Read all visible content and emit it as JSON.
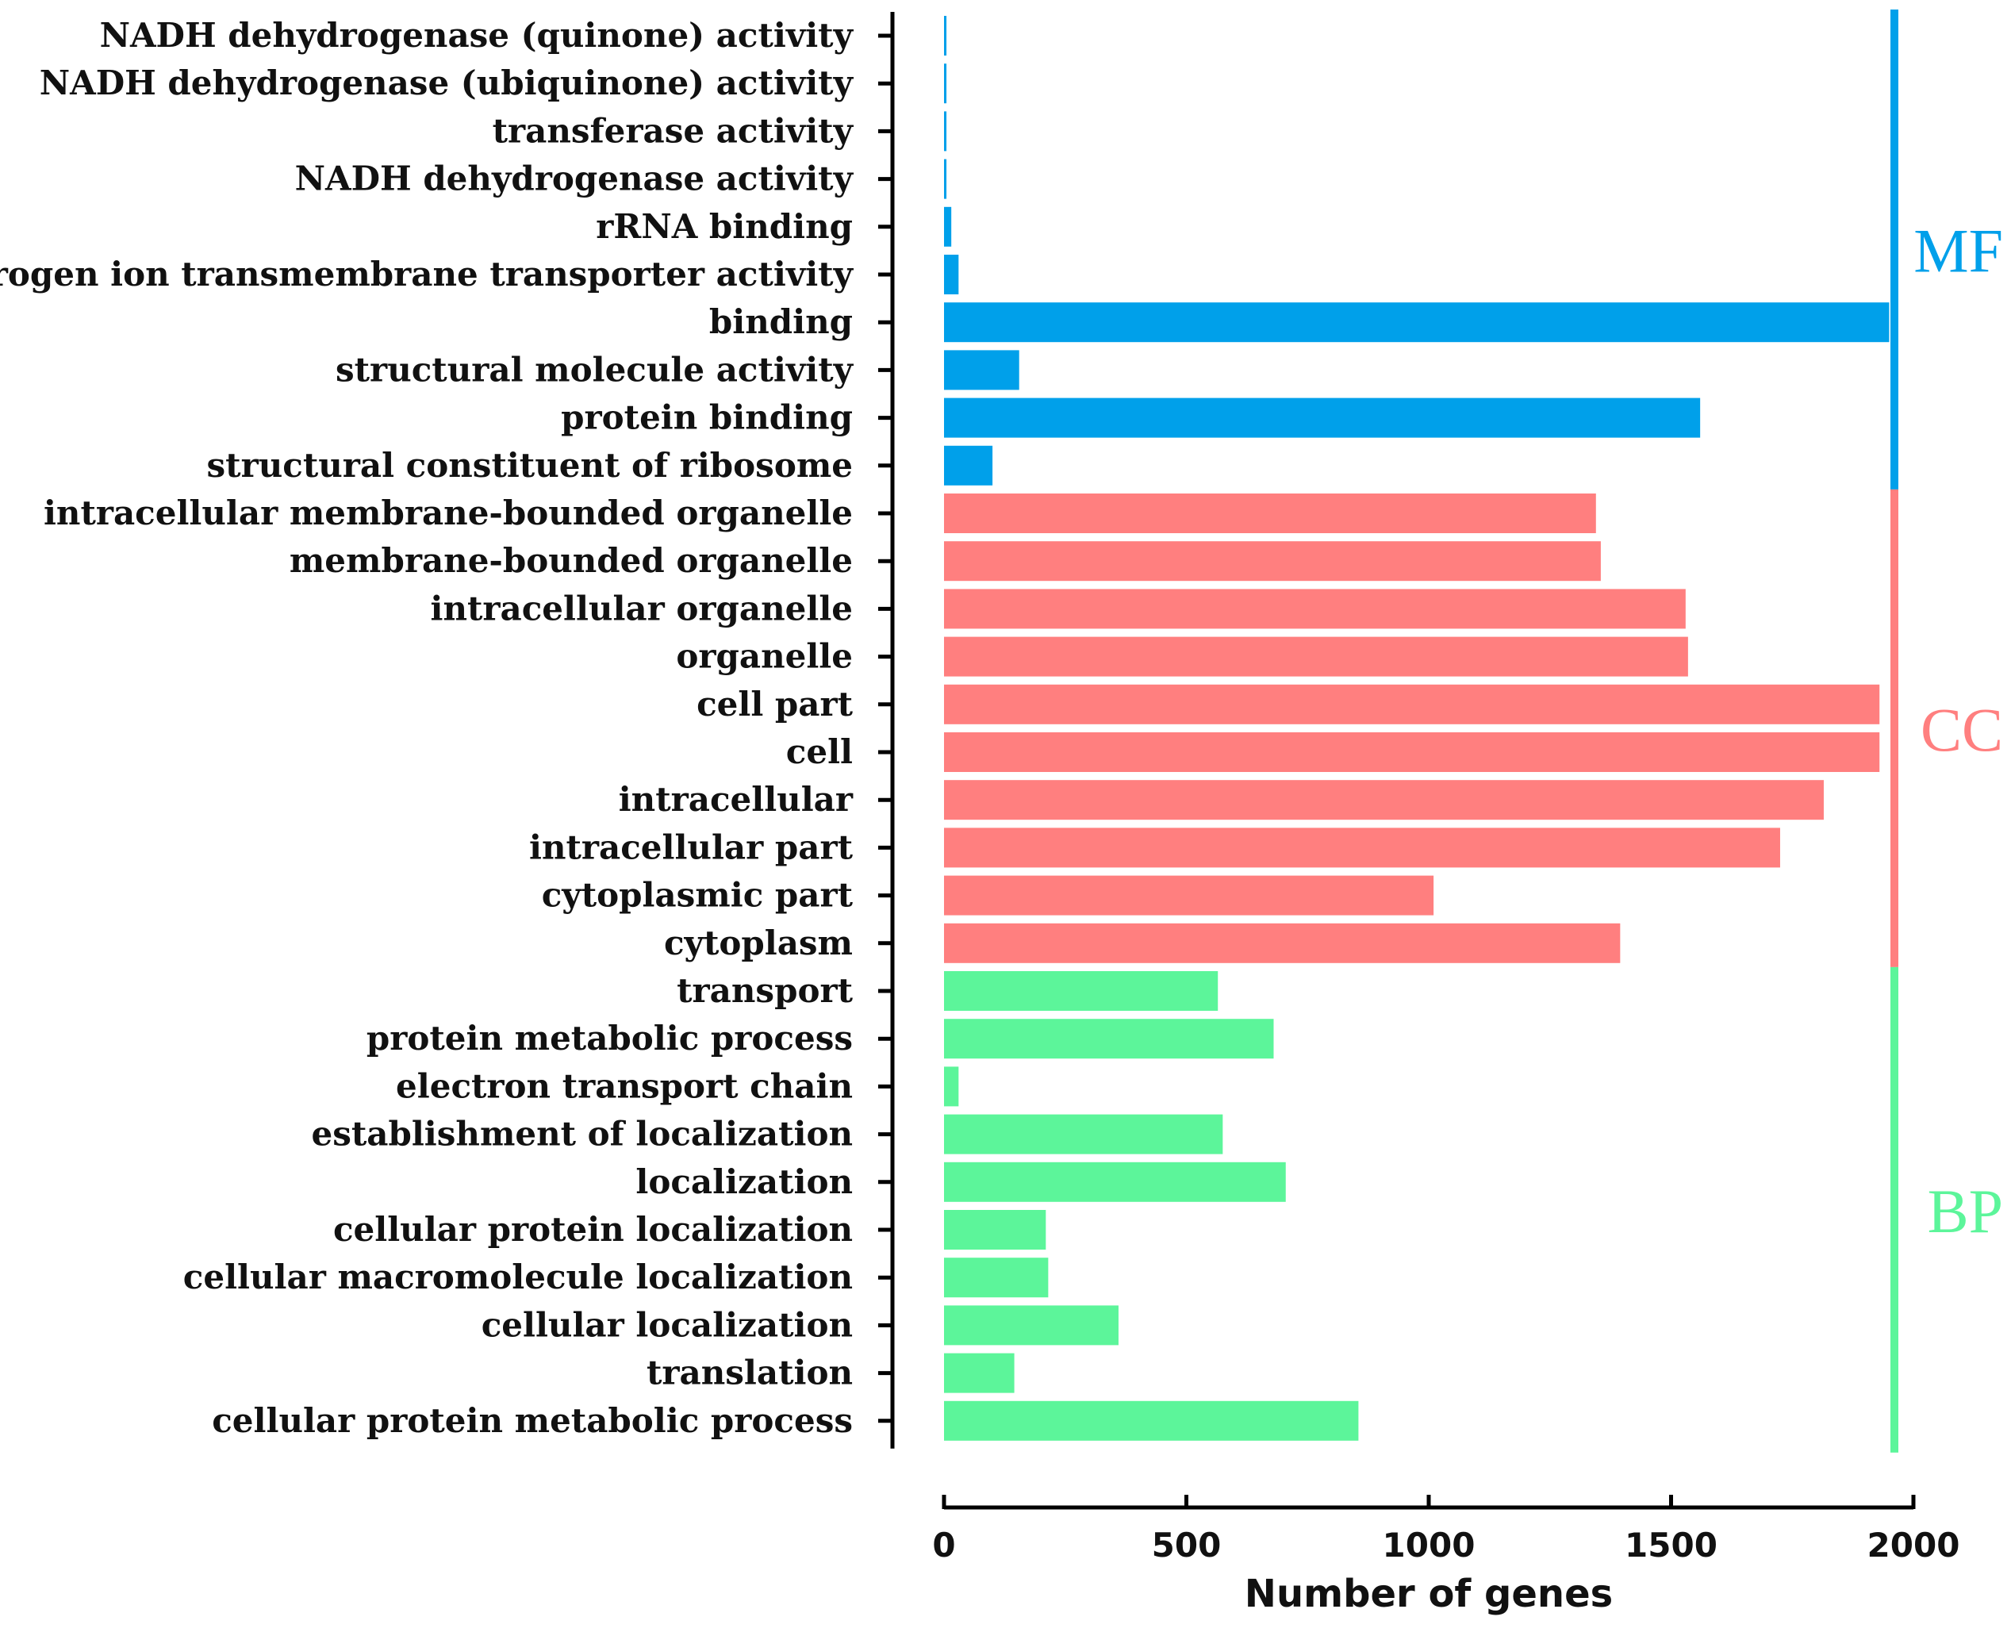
{
  "chart_data": {
    "type": "bar",
    "orientation": "horizontal",
    "title": "",
    "xlabel": "Number of genes",
    "ylabel": "",
    "xlim": [
      0,
      2000
    ],
    "xticks": [
      0,
      500,
      1000,
      1500,
      2000
    ],
    "grid": false,
    "categories": [
      "NADH dehydrogenase (quinone) activity",
      "NADH dehydrogenase (ubiquinone) activity",
      "transferase activity",
      "NADH dehydrogenase activity",
      "rRNA binding",
      "hydrogen ion transmembrane transporter activity",
      "binding",
      "structural molecule activity",
      "protein binding",
      "structural constituent of ribosome",
      "intracellular membrane-bounded organelle",
      "membrane-bounded organelle",
      "intracellular organelle",
      "organelle",
      "cell part",
      "cell",
      "intracellular",
      "intracellular part",
      "cytoplasmic part",
      "cytoplasm",
      "transport",
      "protein metabolic process",
      "electron transport chain",
      "establishment of localization",
      "localization",
      "cellular protein localization",
      "cellular macromolecule localization",
      "cellular localization",
      "translation",
      "cellular protein metabolic process"
    ],
    "values": [
      5,
      5,
      5,
      5,
      15,
      30,
      1950,
      155,
      1560,
      100,
      1345,
      1355,
      1530,
      1535,
      1930,
      1930,
      1815,
      1725,
      1010,
      1395,
      565,
      680,
      30,
      575,
      705,
      210,
      215,
      360,
      145,
      855
    ],
    "groups": [
      {
        "name": "MF",
        "start": 0,
        "end": 9,
        "color": "#00a0ea"
      },
      {
        "name": "CC",
        "start": 10,
        "end": 19,
        "color": "#ff7f7f"
      },
      {
        "name": "BP",
        "start": 20,
        "end": 29,
        "color": "#5cf59a"
      }
    ]
  }
}
